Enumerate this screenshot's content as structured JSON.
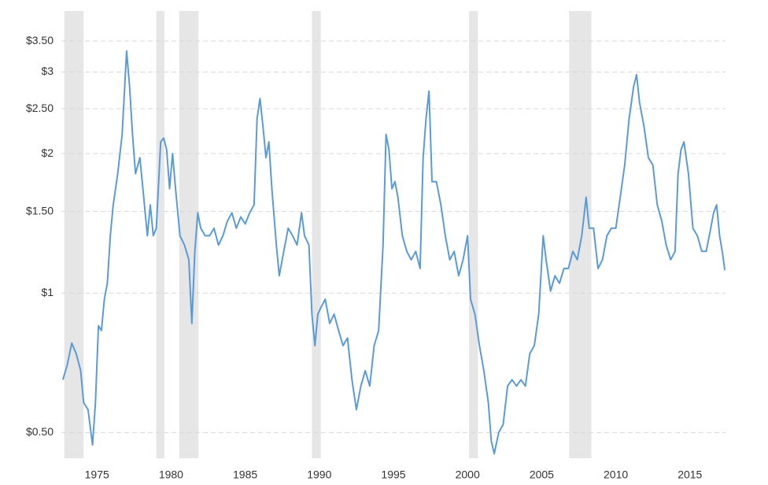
{
  "chart_data": {
    "type": "line",
    "log_scale": true,
    "grid": true,
    "color": "#5b9bd5",
    "recession_color": "#e6e6e6",
    "xlim": [
      1972.6,
      2017.4
    ],
    "xticks": [
      1975,
      1980,
      1985,
      1990,
      1995,
      2000,
      2005,
      2010,
      2015
    ],
    "ylim": [
      0.44,
      4
    ],
    "yticks": [
      {
        "value": 0.5,
        "label": "$0.50"
      },
      {
        "value": 1,
        "label": "$1"
      },
      {
        "value": 1.5,
        "label": "$1.50"
      },
      {
        "value": 2,
        "label": "$2"
      },
      {
        "value": 2.5,
        "label": "$2.50"
      },
      {
        "value": 3,
        "label": "$3"
      },
      {
        "value": 3.5,
        "label": "$3.50"
      }
    ],
    "recessions": [
      [
        1972.8,
        1974.1
      ],
      [
        1979.0,
        1979.55
      ],
      [
        1980.55,
        1981.85
      ],
      [
        1989.5,
        1990.1
      ],
      [
        2000.1,
        2000.7
      ],
      [
        2006.85,
        2008.35
      ]
    ],
    "x": [
      1972.7,
      1973.0,
      1973.3,
      1973.6,
      1973.9,
      1974.1,
      1974.4,
      1974.7,
      1974.9,
      1975.1,
      1975.3,
      1975.5,
      1975.7,
      1975.9,
      1976.1,
      1976.4,
      1976.7,
      1977.0,
      1977.2,
      1977.4,
      1977.6,
      1977.9,
      1978.1,
      1978.4,
      1978.6,
      1978.8,
      1979.0,
      1979.3,
      1979.5,
      1979.7,
      1979.9,
      1980.1,
      1980.3,
      1980.6,
      1980.9,
      1981.2,
      1981.4,
      1981.6,
      1981.8,
      1982.0,
      1982.3,
      1982.6,
      1982.9,
      1983.2,
      1983.5,
      1983.8,
      1984.1,
      1984.4,
      1984.7,
      1985.0,
      1985.3,
      1985.6,
      1985.8,
      1986.0,
      1986.2,
      1986.4,
      1986.6,
      1986.8,
      1987.1,
      1987.3,
      1987.6,
      1987.9,
      1988.2,
      1988.5,
      1988.8,
      1989.0,
      1989.3,
      1989.5,
      1989.7,
      1989.9,
      1990.1,
      1990.4,
      1990.7,
      1991.0,
      1991.3,
      1991.6,
      1991.9,
      1992.2,
      1992.5,
      1992.8,
      1993.1,
      1993.4,
      1993.7,
      1994.0,
      1994.3,
      1994.5,
      1994.7,
      1994.9,
      1995.1,
      1995.3,
      1995.6,
      1995.9,
      1996.2,
      1996.5,
      1996.8,
      1997.0,
      1997.2,
      1997.4,
      1997.6,
      1997.9,
      1998.2,
      1998.5,
      1998.8,
      1999.1,
      1999.4,
      1999.7,
      2000.0,
      2000.2,
      2000.5,
      2000.8,
      2001.1,
      2001.4,
      2001.6,
      2001.8,
      2002.1,
      2002.4,
      2002.7,
      2003.0,
      2003.3,
      2003.6,
      2003.9,
      2004.2,
      2004.5,
      2004.8,
      2005.1,
      2005.3,
      2005.6,
      2005.9,
      2006.2,
      2006.5,
      2006.8,
      2007.1,
      2007.4,
      2007.7,
      2008.0,
      2008.2,
      2008.5,
      2008.8,
      2009.1,
      2009.4,
      2009.7,
      2010.0,
      2010.3,
      2010.6,
      2010.9,
      2011.2,
      2011.4,
      2011.6,
      2011.9,
      2012.2,
      2012.5,
      2012.8,
      2013.1,
      2013.4,
      2013.7,
      2014.0,
      2014.2,
      2014.4,
      2014.6,
      2014.9,
      2015.2,
      2015.5,
      2015.8,
      2016.1,
      2016.4,
      2016.6,
      2016.8,
      2017.0,
      2017.2,
      2017.35
    ],
    "values": [
      0.65,
      0.7,
      0.78,
      0.74,
      0.68,
      0.58,
      0.56,
      0.47,
      0.58,
      0.85,
      0.83,
      0.97,
      1.05,
      1.33,
      1.55,
      1.81,
      2.2,
      3.33,
      2.79,
      2.2,
      1.81,
      1.96,
      1.68,
      1.33,
      1.55,
      1.33,
      1.38,
      2.12,
      2.16,
      2.04,
      1.68,
      2.0,
      1.68,
      1.33,
      1.27,
      1.18,
      0.86,
      1.23,
      1.49,
      1.38,
      1.33,
      1.33,
      1.38,
      1.27,
      1.33,
      1.43,
      1.49,
      1.38,
      1.46,
      1.41,
      1.49,
      1.55,
      2.38,
      2.63,
      2.29,
      1.96,
      2.12,
      1.68,
      1.27,
      1.09,
      1.23,
      1.38,
      1.33,
      1.27,
      1.49,
      1.33,
      1.27,
      0.9,
      0.77,
      0.9,
      0.93,
      0.97,
      0.86,
      0.9,
      0.83,
      0.77,
      0.8,
      0.65,
      0.56,
      0.63,
      0.68,
      0.63,
      0.77,
      0.83,
      1.27,
      2.2,
      2.04,
      1.68,
      1.74,
      1.61,
      1.33,
      1.23,
      1.18,
      1.23,
      1.13,
      1.96,
      2.38,
      2.73,
      1.74,
      1.74,
      1.55,
      1.33,
      1.18,
      1.23,
      1.09,
      1.18,
      1.33,
      0.97,
      0.9,
      0.77,
      0.68,
      0.58,
      0.48,
      0.45,
      0.5,
      0.52,
      0.63,
      0.65,
      0.63,
      0.65,
      0.63,
      0.74,
      0.77,
      0.9,
      1.33,
      1.18,
      1.01,
      1.09,
      1.05,
      1.13,
      1.13,
      1.23,
      1.18,
      1.33,
      1.61,
      1.38,
      1.38,
      1.13,
      1.18,
      1.33,
      1.38,
      1.38,
      1.61,
      1.89,
      2.38,
      2.79,
      2.96,
      2.58,
      2.29,
      1.96,
      1.89,
      1.55,
      1.43,
      1.27,
      1.18,
      1.23,
      1.81,
      2.04,
      2.12,
      1.81,
      1.38,
      1.33,
      1.23,
      1.23,
      1.38,
      1.49,
      1.55,
      1.33,
      1.22,
      1.12
    ]
  }
}
